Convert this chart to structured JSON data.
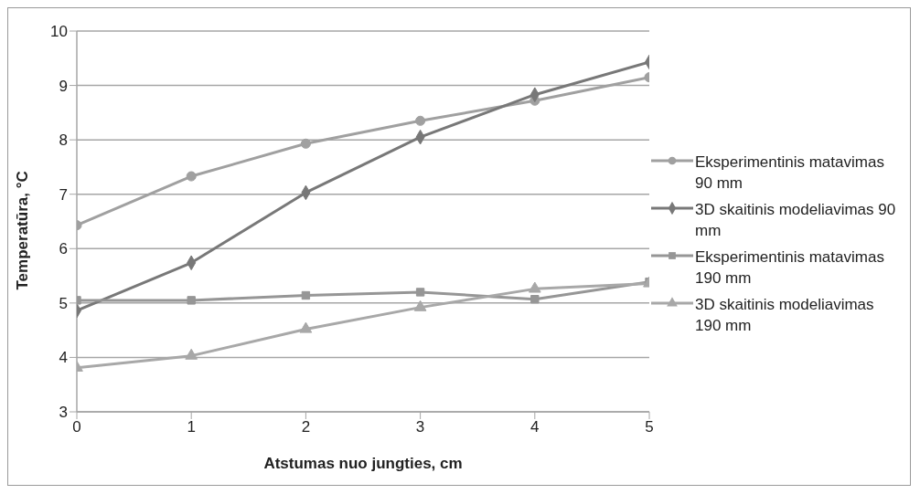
{
  "chart_data": {
    "type": "line",
    "xlabel": "Atstumas nuo jungties, cm",
    "ylabel": "Temperatūra, °C",
    "x": [
      0,
      1,
      2,
      3,
      4,
      5
    ],
    "xlim": [
      0,
      5
    ],
    "xticks": [
      0,
      1,
      2,
      3,
      4,
      5
    ],
    "ylim": [
      3,
      10
    ],
    "yticks": [
      3,
      4,
      5,
      6,
      7,
      8,
      9,
      10
    ],
    "grid": "y",
    "legend": "right",
    "series": [
      {
        "name": "Eksperimentinis matavimas 90 mm",
        "color": "#a0a0a0",
        "marker": "circle",
        "values": [
          6.43,
          7.33,
          7.93,
          8.35,
          8.72,
          9.15
        ]
      },
      {
        "name": "3D skaitinis modeliavimas 90 mm",
        "color": "#787878",
        "marker": "diamond",
        "values": [
          4.86,
          5.74,
          7.03,
          8.05,
          8.83,
          9.43
        ]
      },
      {
        "name": "Eksperimentinis matavimas 190 mm",
        "color": "#969696",
        "marker": "square",
        "values": [
          5.05,
          5.05,
          5.14,
          5.2,
          5.07,
          5.39
        ]
      },
      {
        "name": "3D skaitinis modeliavimas 190 mm",
        "color": "#a8a8a8",
        "marker": "triangle",
        "values": [
          3.81,
          4.03,
          4.52,
          4.92,
          5.26,
          5.36
        ]
      }
    ]
  }
}
